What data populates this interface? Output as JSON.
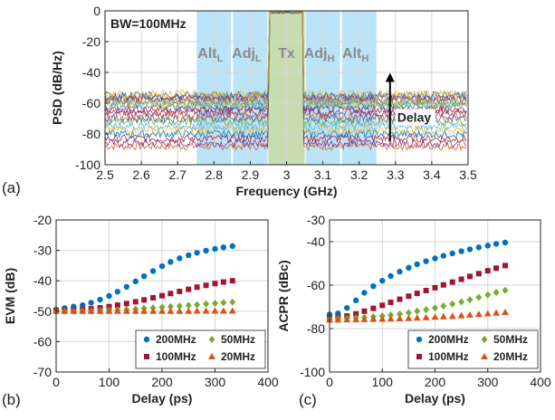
{
  "colors": {
    "blue": "#0072BD",
    "red": "#A2142F",
    "green": "#77AC30",
    "orange": "#D95319",
    "band_blue": "#BCE4F8",
    "band_green": "#C7DDB0",
    "bw_red": "#E8000B"
  },
  "chart_data": [
    {
      "id": "a",
      "panel_label": "(a)",
      "type": "line",
      "xlabel": "Frequency (GHz)",
      "ylabel": "PSD (dB/Hz)",
      "xlim": [
        2.5,
        3.5
      ],
      "ylim": [
        -100,
        0
      ],
      "xticks": [
        "2.5",
        "2.6",
        "2.7",
        "2.8",
        "2.9",
        "3",
        "3.1",
        "3.2",
        "3.3",
        "3.4",
        "3.5"
      ],
      "yticks": [
        "0",
        "-20",
        "-40",
        "-60",
        "-80",
        "-100"
      ],
      "grid": true,
      "annotation_bw": "BW=100MHz",
      "annotation_delay": "Delay",
      "bands": [
        {
          "base": "Alt",
          "sub": "L",
          "x": [
            2.75,
            2.85
          ],
          "kind": "side"
        },
        {
          "base": "Adj",
          "sub": "L",
          "x": [
            2.85,
            2.95
          ],
          "kind": "side"
        },
        {
          "base": "Tx",
          "sub": "",
          "x": [
            2.95,
            3.05
          ],
          "kind": "main"
        },
        {
          "base": "Adj",
          "sub": "H",
          "x": [
            3.05,
            3.15
          ],
          "kind": "side"
        },
        {
          "base": "Alt",
          "sub": "H",
          "x": [
            3.15,
            3.25
          ],
          "kind": "side"
        }
      ],
      "inband_level": -1,
      "noise_floor_levels": [
        -88,
        -86,
        -83,
        -80,
        -77,
        -75,
        -72,
        -70,
        -68,
        -66,
        -64,
        -62,
        -61,
        -60,
        -59,
        -58,
        -57,
        -56,
        -55,
        -54
      ],
      "series_colors": [
        "#D95319",
        "#7E2F8E",
        "#A2142F",
        "#0072BD",
        "#EDB120",
        "#4DBEEE",
        "#77AC30",
        "#3B5BA5",
        "#D95319",
        "#7E2F8E",
        "#A2142F",
        "#0072BD",
        "#EDB120",
        "#4DBEEE",
        "#77AC30",
        "#888888",
        "#D95319",
        "#7E2F8E",
        "#0072BD",
        "#EDB120"
      ]
    },
    {
      "id": "b",
      "panel_label": "(b)",
      "type": "scatter",
      "xlabel": "Delay (ps)",
      "ylabel": "EVM (dB)",
      "xlim": [
        0,
        400
      ],
      "ylim": [
        -70,
        -20
      ],
      "xticks": [
        "0",
        "100",
        "200",
        "300",
        "400"
      ],
      "yticks": [
        "-20",
        "-30",
        "-40",
        "-50",
        "-60",
        "-70"
      ],
      "grid": true,
      "legend_position": "bottom-right",
      "x": [
        0,
        16,
        33,
        50,
        66,
        83,
        100,
        116,
        133,
        150,
        166,
        183,
        200,
        216,
        233,
        250,
        266,
        283,
        300,
        316,
        333
      ],
      "series": [
        {
          "name": "200MHz",
          "marker": "circle",
          "color": "#0072BD",
          "values": [
            -49.5,
            -49,
            -48.5,
            -48,
            -47.2,
            -46.2,
            -45,
            -43.6,
            -42,
            -40.2,
            -38.5,
            -36.8,
            -35.2,
            -33.8,
            -32.6,
            -31.6,
            -30.8,
            -30.1,
            -29.5,
            -29,
            -28.6
          ]
        },
        {
          "name": "100MHz",
          "marker": "square",
          "color": "#A2142F",
          "values": [
            -49.8,
            -49.7,
            -49.6,
            -49.4,
            -49.2,
            -48.9,
            -48.5,
            -48,
            -47.5,
            -46.9,
            -46.3,
            -45.6,
            -44.9,
            -44.2,
            -43.5,
            -42.8,
            -42.1,
            -41.5,
            -40.9,
            -40.4,
            -40
          ]
        },
        {
          "name": "50MHz",
          "marker": "diamond",
          "color": "#77AC30",
          "values": [
            -50,
            -50,
            -50,
            -49.9,
            -49.9,
            -49.8,
            -49.7,
            -49.6,
            -49.5,
            -49.3,
            -49.1,
            -48.9,
            -48.7,
            -48.5,
            -48.3,
            -48.1,
            -47.9,
            -47.6,
            -47.4,
            -47.2,
            -47
          ]
        },
        {
          "name": "20MHz",
          "marker": "triangle",
          "color": "#D95319",
          "values": [
            -50,
            -50,
            -50,
            -50,
            -50,
            -50,
            -50,
            -50,
            -50,
            -50,
            -50,
            -50,
            -50,
            -50,
            -50,
            -50,
            -49.9,
            -49.9,
            -49.9,
            -49.9,
            -49.9
          ]
        }
      ]
    },
    {
      "id": "c",
      "panel_label": "(c)",
      "type": "scatter",
      "xlabel": "Delay (ps)",
      "ylabel": "ACPR (dBc)",
      "xlim": [
        0,
        400
      ],
      "ylim": [
        -100,
        -30
      ],
      "xticks": [
        "0",
        "100",
        "200",
        "300",
        "400"
      ],
      "yticks": [
        "-30",
        "-40",
        "-60",
        "-80",
        "-100"
      ],
      "grid": true,
      "legend_position": "bottom-right",
      "x": [
        0,
        16,
        33,
        50,
        66,
        83,
        100,
        116,
        133,
        150,
        166,
        183,
        200,
        216,
        233,
        250,
        266,
        283,
        300,
        316,
        333
      ],
      "series": [
        {
          "name": "200MHz",
          "marker": "circle",
          "color": "#0072BD",
          "values": [
            -73.5,
            -73,
            -70.5,
            -67,
            -63.5,
            -60.5,
            -58,
            -55.8,
            -53.8,
            -52,
            -50.4,
            -49,
            -47.7,
            -46.5,
            -45.4,
            -44.4,
            -43.5,
            -42.6,
            -41.8,
            -41,
            -40.4
          ]
        },
        {
          "name": "100MHz",
          "marker": "square",
          "color": "#A2142F",
          "values": [
            -75,
            -74.8,
            -74.2,
            -73.2,
            -72,
            -70.7,
            -69.3,
            -67.9,
            -66.5,
            -65.1,
            -63.8,
            -62.5,
            -61.2,
            -59.9,
            -58.6,
            -57.3,
            -56,
            -54.7,
            -53.4,
            -52.2,
            -51
          ]
        },
        {
          "name": "50MHz",
          "marker": "diamond",
          "color": "#77AC30",
          "values": [
            -75.5,
            -75.4,
            -75.3,
            -75.1,
            -74.9,
            -74.6,
            -74.2,
            -73.8,
            -73.3,
            -72.7,
            -72,
            -71.3,
            -70.5,
            -69.6,
            -68.7,
            -67.7,
            -66.7,
            -65.6,
            -64.5,
            -63.4,
            -62.4
          ]
        },
        {
          "name": "20MHz",
          "marker": "triangle",
          "color": "#D95319",
          "values": [
            -76,
            -76,
            -75.9,
            -75.9,
            -75.8,
            -75.7,
            -75.6,
            -75.5,
            -75.4,
            -75.3,
            -75.1,
            -74.9,
            -74.7,
            -74.5,
            -74.3,
            -74,
            -73.7,
            -73.4,
            -73.1,
            -72.8,
            -72.5
          ]
        }
      ]
    }
  ]
}
